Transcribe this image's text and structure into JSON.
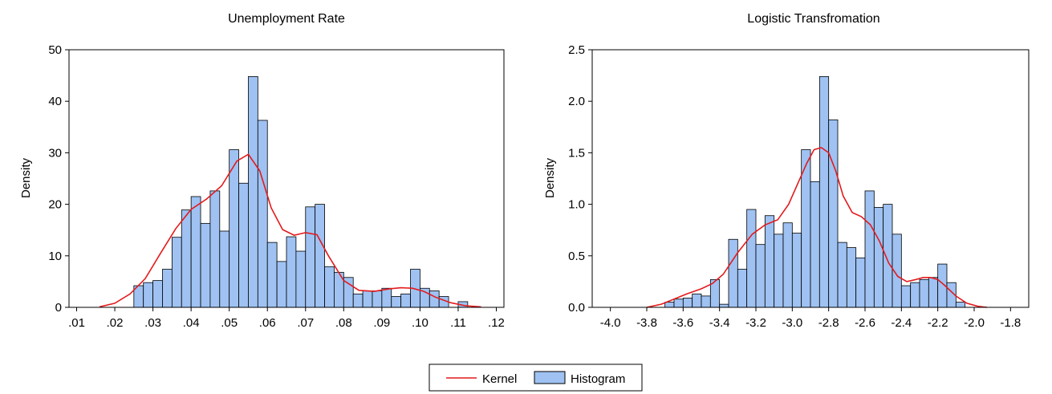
{
  "legend": {
    "kernel_label": "Kernel",
    "histogram_label": "Histogram",
    "kernel_color": "#e41a1c",
    "histogram_color": "#9fc2f2",
    "placement": "bottom-center"
  },
  "chart_data": [
    {
      "type": "bar",
      "title": "Unemployment Rate",
      "xlabel": "",
      "ylabel": "Density",
      "xlim": [
        0.008,
        0.122
      ],
      "ylim": [
        0,
        50
      ],
      "xticks": [
        0.01,
        0.02,
        0.03,
        0.04,
        0.05,
        0.06,
        0.07,
        0.08,
        0.09,
        0.1,
        0.11,
        0.12
      ],
      "xtick_labels": [
        ".01",
        ".02",
        ".03",
        ".04",
        ".05",
        ".06",
        ".07",
        ".08",
        ".09",
        ".10",
        ".11",
        ".12"
      ],
      "yticks": [
        0,
        10,
        20,
        30,
        40,
        50
      ],
      "ytick_labels": [
        "0",
        "10",
        "20",
        "30",
        "40",
        "50"
      ],
      "grid": false,
      "histogram": {
        "bin_start": 0.025,
        "bin_width": 0.0025,
        "values": [
          4.2,
          4.8,
          5.2,
          7.4,
          13.6,
          18.9,
          21.5,
          16.3,
          22.6,
          14.8,
          30.6,
          24.1,
          44.8,
          36.3,
          12.6,
          8.9,
          13.7,
          10.9,
          19.5,
          20.0,
          7.9,
          6.8,
          5.8,
          2.6,
          3.2,
          3.2,
          3.7,
          2.1,
          2.6,
          7.4,
          3.7,
          3.2,
          2.1,
          0,
          1.1
        ]
      },
      "kernel": {
        "x": [
          0.016,
          0.02,
          0.024,
          0.028,
          0.032,
          0.036,
          0.04,
          0.044,
          0.048,
          0.052,
          0.055,
          0.058,
          0.061,
          0.064,
          0.067,
          0.07,
          0.073,
          0.076,
          0.08,
          0.084,
          0.088,
          0.092,
          0.095,
          0.098,
          0.101,
          0.104,
          0.108,
          0.112,
          0.116
        ],
        "y": [
          0.1,
          0.8,
          2.6,
          5.6,
          10.5,
          15.3,
          19.0,
          21.0,
          23.6,
          28.4,
          29.7,
          26.5,
          19.3,
          15.1,
          14.0,
          14.5,
          14.1,
          10.0,
          5.2,
          3.3,
          3.1,
          3.6,
          3.8,
          3.7,
          3.1,
          2.0,
          0.9,
          0.3,
          0.1
        ]
      }
    },
    {
      "type": "bar",
      "title": "Logistic Transfromation",
      "xlabel": "",
      "ylabel": "Density",
      "xlim": [
        -4.1,
        -1.7
      ],
      "ylim": [
        0,
        2.5
      ],
      "xticks": [
        -4.0,
        -3.8,
        -3.6,
        -3.4,
        -3.2,
        -3.0,
        -2.8,
        -2.6,
        -2.4,
        -2.2,
        -2.0,
        -1.8
      ],
      "xtick_labels": [
        "-4.0",
        "-3.8",
        "-3.6",
        "-3.4",
        "-3.2",
        "-3.0",
        "-2.8",
        "-2.6",
        "-2.4",
        "-2.2",
        "-2.0",
        "-1.8"
      ],
      "yticks": [
        0,
        0.5,
        1.0,
        1.5,
        2.0,
        2.5
      ],
      "ytick_labels": [
        "0.0",
        "0.5",
        "1.0",
        "1.5",
        "2.0",
        "2.5"
      ],
      "grid": false,
      "histogram": {
        "bin_start": -3.7,
        "bin_width": 0.05,
        "values": [
          0.05,
          0.08,
          0.09,
          0.13,
          0.11,
          0.27,
          0.03,
          0.66,
          0.37,
          0.95,
          0.61,
          0.89,
          0.71,
          0.82,
          0.72,
          1.53,
          1.22,
          2.24,
          1.82,
          0.63,
          0.58,
          0.48,
          1.13,
          0.97,
          1.0,
          0.71,
          0.21,
          0.24,
          0.27,
          0.29,
          0.42,
          0.24,
          0.05
        ]
      },
      "kernel": {
        "x": [
          -3.8,
          -3.72,
          -3.65,
          -3.58,
          -3.5,
          -3.44,
          -3.38,
          -3.3,
          -3.22,
          -3.15,
          -3.08,
          -3.02,
          -2.97,
          -2.92,
          -2.88,
          -2.84,
          -2.8,
          -2.76,
          -2.72,
          -2.67,
          -2.62,
          -2.57,
          -2.52,
          -2.47,
          -2.42,
          -2.37,
          -2.32,
          -2.28,
          -2.24,
          -2.2,
          -2.16,
          -2.1,
          -2.04,
          -1.98,
          -1.93
        ],
        "y": [
          0.0,
          0.03,
          0.08,
          0.13,
          0.18,
          0.23,
          0.32,
          0.53,
          0.71,
          0.8,
          0.85,
          1.0,
          1.2,
          1.4,
          1.53,
          1.55,
          1.5,
          1.32,
          1.08,
          0.92,
          0.88,
          0.8,
          0.64,
          0.43,
          0.3,
          0.25,
          0.27,
          0.29,
          0.29,
          0.27,
          0.21,
          0.11,
          0.04,
          0.01,
          0.0
        ]
      }
    }
  ]
}
